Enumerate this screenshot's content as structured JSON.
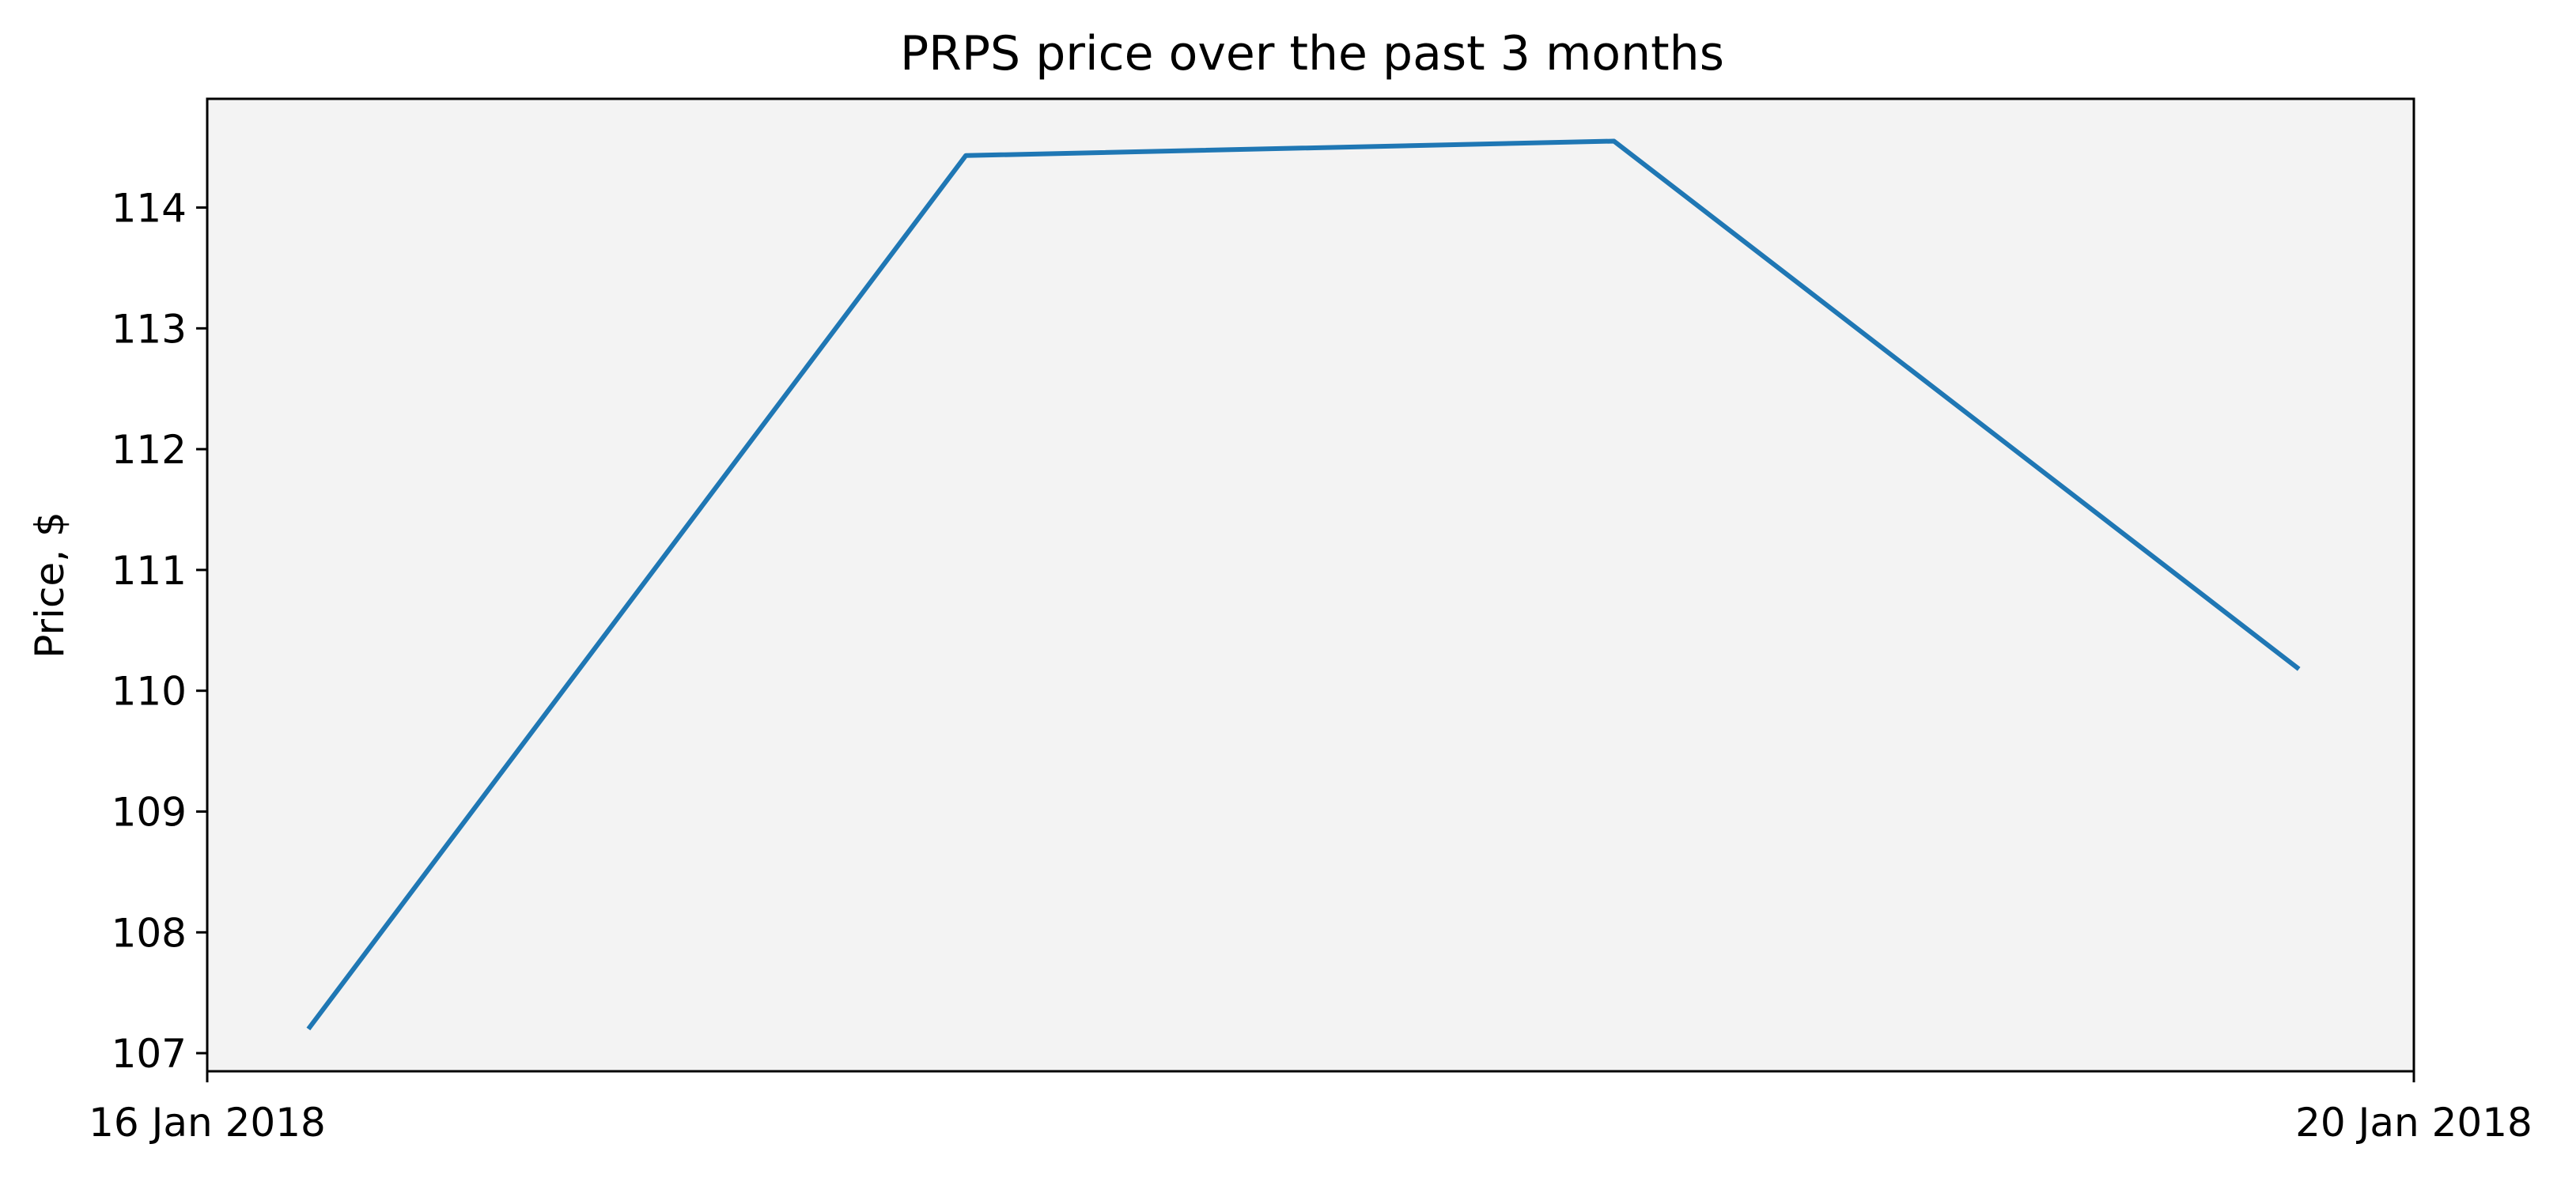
{
  "chart_data": {
    "type": "line",
    "title": "PRPS price over the past 3 months",
    "xlabel": "",
    "ylabel": "Price, $",
    "xlim": [
      "2018-01-16",
      "2018-01-20"
    ],
    "ylim": [
      106.85,
      114.9
    ],
    "x_ticks": [
      "16 Jan 2018",
      "20 Jan 2018"
    ],
    "y_ticks": [
      "107",
      "108",
      "109",
      "110",
      "111",
      "112",
      "113",
      "114"
    ],
    "grid": false,
    "background_color": "#f3f3f3",
    "series": [
      {
        "color": "#1f77b4",
        "x": [
          "2018-01-16 04:24",
          "2018-01-17 09:00",
          "2018-01-18 13:12",
          "2018-01-19 19:00"
        ],
        "values": [
          107.2,
          114.43,
          114.55,
          110.18
        ]
      }
    ]
  }
}
